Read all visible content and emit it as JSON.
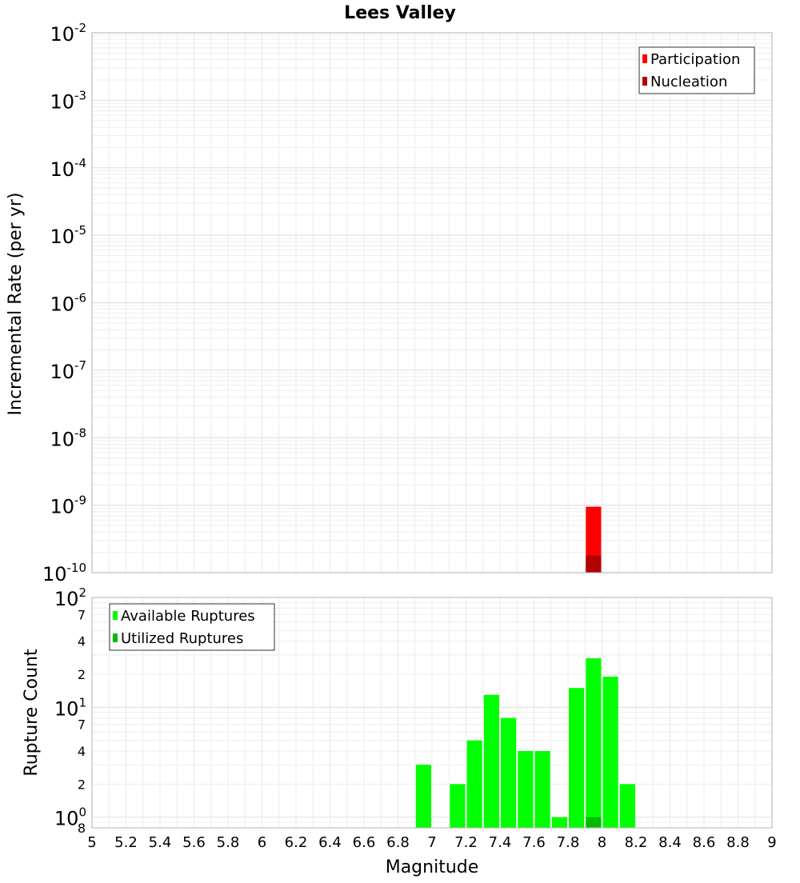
{
  "chart_data": [
    {
      "type": "bar",
      "title": "Lees Valley",
      "xlabel": "",
      "ylabel": "Incremental Rate (per yr)",
      "y_scale": "log",
      "ylim": [
        1e-10,
        0.01
      ],
      "xlim": [
        5,
        9
      ],
      "grid": true,
      "legend_position": "top-right",
      "y_tick_labels": [
        {
          "base": "10",
          "exp": "-2"
        },
        {
          "base": "10",
          "exp": "-3"
        },
        {
          "base": "10",
          "exp": "-4"
        },
        {
          "base": "10",
          "exp": "-5"
        },
        {
          "base": "10",
          "exp": "-6"
        },
        {
          "base": "10",
          "exp": "-7"
        },
        {
          "base": "10",
          "exp": "-8"
        },
        {
          "base": "10",
          "exp": "-9"
        },
        {
          "base": "10",
          "exp": "-10"
        }
      ],
      "series": [
        {
          "name": "Participation",
          "color": "#ff0000",
          "x": [
            7.95
          ],
          "values": [
            9.5e-10
          ]
        },
        {
          "name": "Nucleation",
          "color": "#b30000",
          "x": [
            7.95
          ],
          "values": [
            1.8e-10
          ]
        }
      ]
    },
    {
      "type": "bar",
      "xlabel": "Magnitude",
      "ylabel": "Rupture Count",
      "y_scale": "log",
      "ylim": [
        0.8,
        100
      ],
      "xlim": [
        5,
        9
      ],
      "grid": true,
      "legend_position": "top-left",
      "x_tick_labels": [
        "5",
        "5.2",
        "5.4",
        "5.6",
        "5.8",
        "6",
        "6.2",
        "6.4",
        "6.6",
        "6.8",
        "7",
        "7.2",
        "7.4",
        "7.6",
        "7.8",
        "8",
        "8.2",
        "8.4",
        "8.6",
        "8.8",
        "9"
      ],
      "y_tick_labels": [
        {
          "base": "10",
          "exp": "2",
          "minor": false
        },
        {
          "text": "7",
          "minor": true
        },
        {
          "text": "4",
          "minor": true
        },
        {
          "text": "2",
          "minor": true
        },
        {
          "base": "10",
          "exp": "1",
          "minor": false
        },
        {
          "text": "7",
          "minor": true
        },
        {
          "text": "4",
          "minor": true
        },
        {
          "text": "2",
          "minor": true
        },
        {
          "base": "10",
          "exp": "0",
          "minor": false
        },
        {
          "text": "8",
          "minor": true
        }
      ],
      "series": [
        {
          "name": "Available Ruptures",
          "color": "#00ff00",
          "x": [
            6.95,
            7.15,
            7.25,
            7.35,
            7.45,
            7.55,
            7.65,
            7.75,
            7.85,
            7.95,
            8.05,
            8.15
          ],
          "values": [
            3,
            2,
            5,
            13,
            8,
            4,
            4,
            1,
            15,
            28,
            19,
            2
          ]
        },
        {
          "name": "Utilized Ruptures",
          "color": "#00bb00",
          "x": [
            7.95
          ],
          "values": [
            1
          ]
        }
      ]
    }
  ]
}
